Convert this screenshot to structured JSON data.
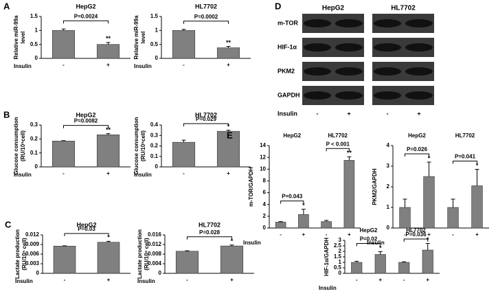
{
  "chart_data": [
    {
      "type": "bar",
      "panel": "A",
      "title": "HepG2",
      "ylabel": [
        "Relative miR-99a",
        "level"
      ],
      "xlabel": "Insulin",
      "categories": [
        "-",
        "+"
      ],
      "values": [
        1.0,
        0.5
      ],
      "errors": [
        0.05,
        0.07
      ],
      "significance": [
        null,
        "**"
      ],
      "p_values": [
        "P=0.0024"
      ],
      "color": "#808080",
      "ylim": [
        0,
        1.5
      ],
      "yticks": [
        0,
        0.5,
        1,
        1.5
      ]
    },
    {
      "type": "bar",
      "title": "HL7702",
      "ylabel": [
        "Relative miR-99a",
        "level"
      ],
      "xlabel": "Insulin",
      "categories": [
        "-",
        "+"
      ],
      "values": [
        1.0,
        0.38
      ],
      "errors": [
        0.04,
        0.05
      ],
      "significance": [
        null,
        "**"
      ],
      "p_values": [
        "P=0.0002"
      ],
      "color": "#808080",
      "ylim": [
        0,
        1.5
      ],
      "yticks": [
        0,
        0.5,
        1,
        1.5
      ]
    },
    {
      "type": "bar",
      "panel": "B",
      "title": "HepG2",
      "ylabel": [
        "Glucose consumption",
        "(RU/10⁶cell)"
      ],
      "xlabel": "Insulin",
      "categories": [
        "-",
        "+"
      ],
      "values": [
        0.185,
        0.23
      ],
      "errors": [
        0.003,
        0.008
      ],
      "significance": [
        null,
        "**"
      ],
      "p_values": [
        "P=0.0082"
      ],
      "color": "#808080",
      "ylim": [
        0,
        0.3
      ],
      "yticks": [
        0,
        0.1,
        0.2,
        0.3
      ]
    },
    {
      "type": "bar",
      "title": "HL7702",
      "ylabel": [
        "Glucose consumption",
        "(RU/10⁶cell)"
      ],
      "xlabel": "Insulin",
      "categories": [
        "-",
        "+"
      ],
      "values": [
        0.235,
        0.34
      ],
      "errors": [
        0.02,
        0.01
      ],
      "significance": [
        null,
        "*"
      ],
      "p_values": [
        "P=0.029"
      ],
      "color": "#808080",
      "ylim": [
        0,
        0.4
      ],
      "yticks": [
        0,
        0.1,
        0.2,
        0.3,
        0.4
      ]
    },
    {
      "type": "bar",
      "panel": "C",
      "title": "HepG2",
      "ylabel": [
        "Lactate production",
        "(RU/10⁶ cell)"
      ],
      "xlabel": "Insulin",
      "categories": [
        "-",
        "+"
      ],
      "values": [
        0.0085,
        0.0097
      ],
      "errors": [
        0.0001,
        0.0003
      ],
      "significance": [
        null,
        "*"
      ],
      "p_values": [
        "P=0.03"
      ],
      "color": "#808080",
      "ylim": [
        0,
        0.012
      ],
      "yticks": [
        0,
        0.003,
        0.006,
        0.009,
        0.012
      ]
    },
    {
      "type": "bar",
      "title": "HL7702",
      "ylabel": [
        "Lactate production",
        "(RU/10⁶ cell)"
      ],
      "xlabel": "Insulin",
      "categories": [
        "-",
        "+"
      ],
      "values": [
        0.0092,
        0.0114
      ],
      "errors": [
        0.0002,
        0.0004
      ],
      "significance": [
        null,
        "*"
      ],
      "p_values": [
        "P=0.028"
      ],
      "color": "#808080",
      "ylim": [
        0,
        0.016
      ],
      "yticks": [
        0,
        0.004,
        0.008,
        0.012,
        0.016
      ]
    },
    {
      "type": "bar",
      "panel": "E",
      "groups": [
        "HepG2",
        "HL7702"
      ],
      "ylabel": [
        "m-TOR/GAPDH"
      ],
      "xlabel": "Insulin",
      "categories": [
        "-",
        "+",
        "-",
        "+"
      ],
      "values": [
        1.0,
        2.3,
        1.1,
        11.5
      ],
      "errors": [
        0.1,
        0.9,
        0.2,
        0.6
      ],
      "significance": [
        null,
        "*",
        null,
        "**"
      ],
      "p_values": [
        "P=0.043",
        "P < 0.001"
      ],
      "color": "#808080",
      "ylim": [
        0,
        14
      ],
      "yticks": [
        0,
        2,
        4,
        6,
        8,
        10,
        12,
        14
      ]
    },
    {
      "type": "bar",
      "groups": [
        "HepG2",
        "HL7702"
      ],
      "ylabel": [
        "PKM2/GAPDH"
      ],
      "xlabel": "Insulin",
      "categories": [
        "-",
        "+",
        "-",
        "+"
      ],
      "values": [
        1.0,
        2.5,
        1.0,
        2.05
      ],
      "errors": [
        0.4,
        0.7,
        0.4,
        0.8
      ],
      "significance": [
        null,
        "*",
        null,
        "*"
      ],
      "p_values": [
        "P=0.026",
        "P=0.041"
      ],
      "color": "#808080",
      "ylim": [
        0,
        4
      ],
      "yticks": [
        0,
        1,
        2,
        3,
        4
      ]
    },
    {
      "type": "bar",
      "groups": [
        "HepG2",
        "HL7702"
      ],
      "ylabel": [
        "HIF-1α/GAPDH"
      ],
      "xlabel": "Insulin",
      "categories": [
        "-",
        "+",
        "-",
        "+"
      ],
      "values": [
        1.0,
        1.72,
        1.0,
        2.12
      ],
      "errors": [
        0.1,
        0.25,
        0.05,
        0.6
      ],
      "significance": [
        null,
        "*",
        null,
        "*"
      ],
      "p_values": [
        "P=0.02",
        "P=0.036"
      ],
      "color": "#808080",
      "ylim": [
        0,
        3
      ],
      "yticks": [
        0,
        0.5,
        1,
        1.5,
        2,
        2.5,
        3
      ]
    }
  ],
  "blot": {
    "panel": "D",
    "columns": [
      "HepG2",
      "HL7702"
    ],
    "rows": [
      "m-TOR",
      "HIF-1α",
      "PKM2",
      "GAPDH"
    ],
    "xlabel": "Insulin",
    "lanes": [
      "-",
      "+",
      "-",
      "+"
    ]
  }
}
